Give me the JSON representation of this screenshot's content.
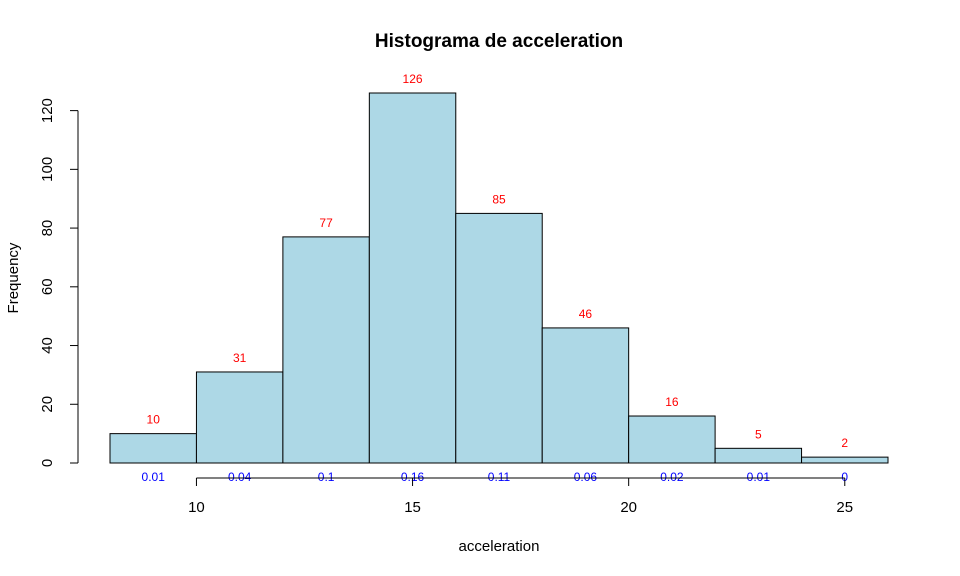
{
  "chart_data": {
    "type": "bar",
    "title": "Histograma de acceleration",
    "xlabel": "acceleration",
    "ylabel": "Frequency",
    "bin_edges": [
      8,
      10,
      12,
      14,
      16,
      18,
      20,
      22,
      24,
      26
    ],
    "values": [
      10,
      31,
      77,
      126,
      85,
      46,
      16,
      5,
      2
    ],
    "count_labels": [
      "10",
      "31",
      "77",
      "126",
      "85",
      "46",
      "16",
      "5",
      "2"
    ],
    "density_labels": [
      "0.01",
      "0.04",
      "0.1",
      "0.16",
      "0.11",
      "0.06",
      "0.02",
      "0.01",
      "0"
    ],
    "xlim": [
      8,
      26
    ],
    "ylim": [
      0,
      126
    ],
    "x_ticks": [
      10,
      15,
      20,
      25
    ],
    "y_ticks": [
      0,
      20,
      40,
      60,
      80,
      100,
      120
    ],
    "grid": false,
    "colors": {
      "bar_fill": "#add8e6",
      "bar_stroke": "#000000",
      "count_label": "#ff0000",
      "density_label": "#0000ff"
    }
  }
}
